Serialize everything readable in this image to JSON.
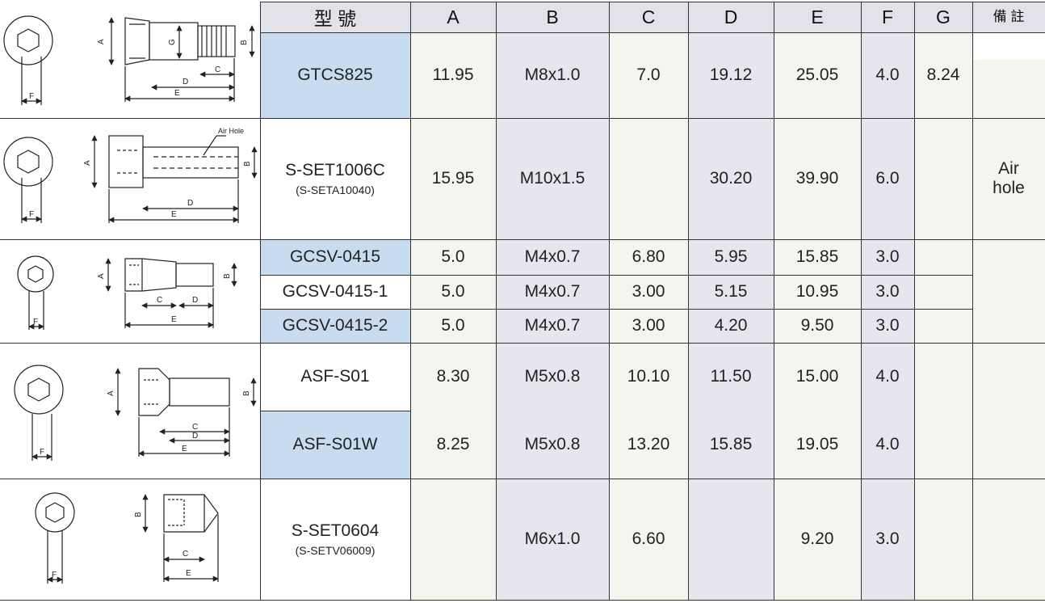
{
  "header": {
    "model": "型 號",
    "cols": [
      "A",
      "B",
      "C",
      "D",
      "E",
      "F",
      "G"
    ],
    "remarks": "備  註"
  },
  "rows": [
    {
      "model": "GTCS825",
      "sub": "",
      "A": "11.95",
      "B": "M8x1.0",
      "C": "7.0",
      "D": "19.12",
      "E": "25.05",
      "F": "4.0",
      "G": "8.24",
      "remark": "",
      "highlight": true
    },
    {
      "model": "S-SET1006C",
      "sub": "(S-SETA10040)",
      "A": "15.95",
      "B": "M10x1.5",
      "C": "",
      "D": "30.20",
      "E": "39.90",
      "F": "6.0",
      "G": "",
      "remark": "Air hole",
      "highlight": false
    },
    {
      "model": "GCSV-0415",
      "sub": "",
      "A": "5.0",
      "B": "M4x0.7",
      "C": "6.80",
      "D": "5.95",
      "E": "15.85",
      "F": "3.0",
      "G": "",
      "remark": "",
      "highlight": true
    },
    {
      "model": "GCSV-0415-1",
      "sub": "",
      "A": "5.0",
      "B": "M4x0.7",
      "C": "3.00",
      "D": "5.15",
      "E": "10.95",
      "F": "3.0",
      "G": "",
      "remark": "",
      "highlight": false
    },
    {
      "model": "GCSV-0415-2",
      "sub": "",
      "A": "5.0",
      "B": "M4x0.7",
      "C": "3.00",
      "D": "4.20",
      "E": "9.50",
      "F": "3.0",
      "G": "",
      "remark": "",
      "highlight": true
    },
    {
      "model": "ASF-S01",
      "sub": "",
      "A": "8.30",
      "B": "M5x0.8",
      "C": "10.10",
      "D": "11.50",
      "E": "15.00",
      "F": "4.0",
      "G": "",
      "remark": "",
      "highlight": false
    },
    {
      "model": "ASF-S01W",
      "sub": "",
      "A": "8.25",
      "B": "M5x0.8",
      "C": "13.20",
      "D": "15.85",
      "E": "19.05",
      "F": "4.0",
      "G": "",
      "remark": "",
      "highlight": true
    },
    {
      "model": "S-SET0604",
      "sub": "(S-SETV06009)",
      "A": "",
      "B": "M6x1.0",
      "C": "6.60",
      "D": "",
      "E": "9.20",
      "F": "3.0",
      "G": "",
      "remark": "",
      "highlight": false
    }
  ],
  "diagram_labels": {
    "air_hole": "Air Hole",
    "dims": [
      "A",
      "B",
      "C",
      "D",
      "E",
      "F",
      "G"
    ]
  },
  "colors": {
    "model_highlight": "#c9dcef",
    "col_light": "#f6f4ef",
    "col_shade": "#e6e6ee",
    "header_bg": "#e2e3ea",
    "border": "#333333"
  }
}
